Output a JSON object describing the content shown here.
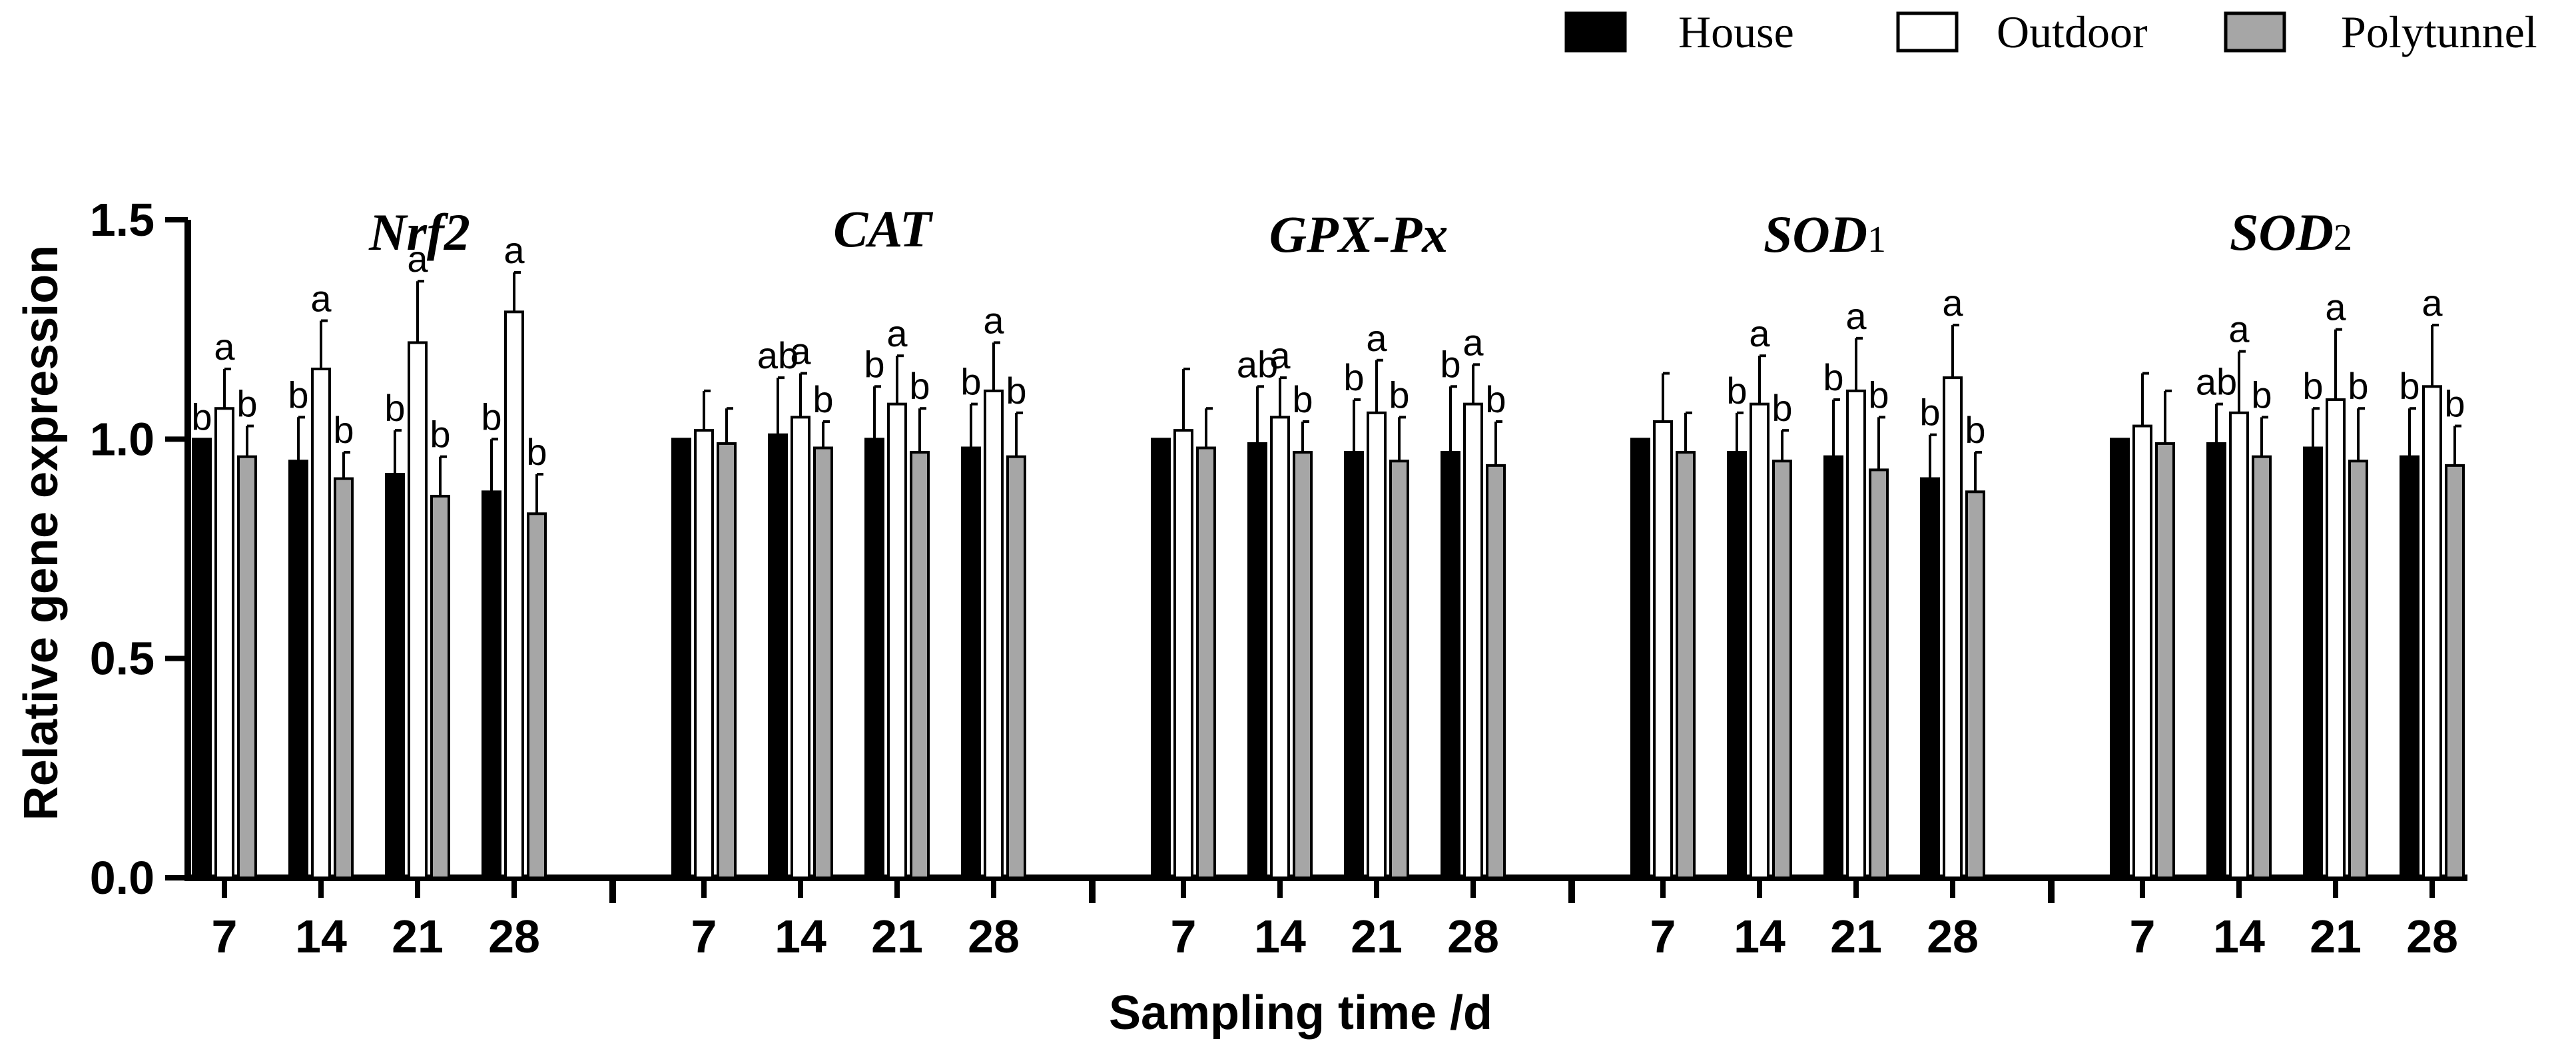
{
  "colors": {
    "House": "#000000",
    "Outdoor": "#ffffff",
    "Polytunnel": "#a6a6a6",
    "stroke": "#000000"
  },
  "chart_data": {
    "type": "bar",
    "title": "",
    "xlabel": "Sampling time /d",
    "ylabel": "Relative gene expression",
    "ylim": [
      0,
      1.5
    ],
    "yticks": [
      "0.0",
      "0.5",
      "1.0",
      "1.5"
    ],
    "yticks_values": [
      0,
      0.5,
      1.0,
      1.5
    ],
    "grid": false,
    "legend_position": "top-right",
    "legend": [
      "House",
      "Outdoor",
      "Polytunnel"
    ],
    "categories": [
      "7",
      "14",
      "21",
      "28"
    ],
    "genes": [
      {
        "name": "Nrf",
        "suffix": "2",
        "groups": [
          {
            "day": "7",
            "values": [
              1.0,
              1.07,
              0.96
            ],
            "errors": [
              0.0,
              0.09,
              0.07
            ],
            "letters": [
              "b",
              "a",
              "b"
            ]
          },
          {
            "day": "14",
            "values": [
              0.95,
              1.16,
              0.91
            ],
            "errors": [
              0.1,
              0.11,
              0.06
            ],
            "letters": [
              "b",
              "a",
              "b"
            ]
          },
          {
            "day": "21",
            "values": [
              0.92,
              1.22,
              0.87
            ],
            "errors": [
              0.1,
              0.14,
              0.09
            ],
            "letters": [
              "b",
              "a",
              "b"
            ]
          },
          {
            "day": "28",
            "values": [
              0.88,
              1.29,
              0.83
            ],
            "errors": [
              0.12,
              0.09,
              0.09
            ],
            "letters": [
              "b",
              "a",
              "b"
            ]
          }
        ]
      },
      {
        "name": "CAT",
        "suffix": "",
        "groups": [
          {
            "day": "7",
            "values": [
              1.0,
              1.02,
              0.99
            ],
            "errors": [
              0.0,
              0.09,
              0.08
            ],
            "letters": [
              "",
              "",
              ""
            ]
          },
          {
            "day": "14",
            "values": [
              1.01,
              1.05,
              0.98
            ],
            "errors": [
              0.13,
              0.1,
              0.06
            ],
            "letters": [
              "ab",
              "a",
              "b"
            ]
          },
          {
            "day": "21",
            "values": [
              1.0,
              1.08,
              0.97
            ],
            "errors": [
              0.12,
              0.11,
              0.1
            ],
            "letters": [
              "b",
              "a",
              "b"
            ]
          },
          {
            "day": "28",
            "values": [
              0.98,
              1.11,
              0.96
            ],
            "errors": [
              0.1,
              0.11,
              0.1
            ],
            "letters": [
              "b",
              "a",
              "b"
            ]
          }
        ]
      },
      {
        "name": "GPX-Px",
        "suffix": "",
        "groups": [
          {
            "day": "7",
            "values": [
              1.0,
              1.02,
              0.98
            ],
            "errors": [
              0.0,
              0.14,
              0.09
            ],
            "letters": [
              "",
              "",
              ""
            ]
          },
          {
            "day": "14",
            "values": [
              0.99,
              1.05,
              0.97
            ],
            "errors": [
              0.13,
              0.09,
              0.07
            ],
            "letters": [
              "ab",
              "a",
              "b"
            ]
          },
          {
            "day": "21",
            "values": [
              0.97,
              1.06,
              0.95
            ],
            "errors": [
              0.12,
              0.12,
              0.1
            ],
            "letters": [
              "b",
              "a",
              "b"
            ]
          },
          {
            "day": "28",
            "values": [
              0.97,
              1.08,
              0.94
            ],
            "errors": [
              0.15,
              0.09,
              0.1
            ],
            "letters": [
              "b",
              "a",
              "b"
            ]
          }
        ]
      },
      {
        "name": "SOD",
        "suffix": "1",
        "groups": [
          {
            "day": "7",
            "values": [
              1.0,
              1.04,
              0.97
            ],
            "errors": [
              0.0,
              0.11,
              0.09
            ],
            "letters": [
              "",
              "",
              ""
            ]
          },
          {
            "day": "14",
            "values": [
              0.97,
              1.08,
              0.95
            ],
            "errors": [
              0.09,
              0.11,
              0.07
            ],
            "letters": [
              "b",
              "a",
              "b"
            ]
          },
          {
            "day": "21",
            "values": [
              0.96,
              1.11,
              0.93
            ],
            "errors": [
              0.13,
              0.12,
              0.12
            ],
            "letters": [
              "b",
              "a",
              "b"
            ]
          },
          {
            "day": "28",
            "values": [
              0.91,
              1.14,
              0.88
            ],
            "errors": [
              0.1,
              0.12,
              0.09
            ],
            "letters": [
              "b",
              "a",
              "b"
            ]
          }
        ]
      },
      {
        "name": "SOD",
        "suffix": "2",
        "groups": [
          {
            "day": "7",
            "values": [
              1.0,
              1.03,
              0.99
            ],
            "errors": [
              0.0,
              0.12,
              0.12
            ],
            "letters": [
              "",
              "",
              ""
            ]
          },
          {
            "day": "14",
            "values": [
              0.99,
              1.06,
              0.96
            ],
            "errors": [
              0.09,
              0.14,
              0.09
            ],
            "letters": [
              "ab",
              "a",
              "b"
            ]
          },
          {
            "day": "21",
            "values": [
              0.98,
              1.09,
              0.95
            ],
            "errors": [
              0.09,
              0.16,
              0.12
            ],
            "letters": [
              "b",
              "a",
              "b"
            ]
          },
          {
            "day": "28",
            "values": [
              0.96,
              1.12,
              0.94
            ],
            "errors": [
              0.11,
              0.14,
              0.09
            ],
            "letters": [
              "b",
              "a",
              "b"
            ]
          }
        ]
      }
    ]
  }
}
